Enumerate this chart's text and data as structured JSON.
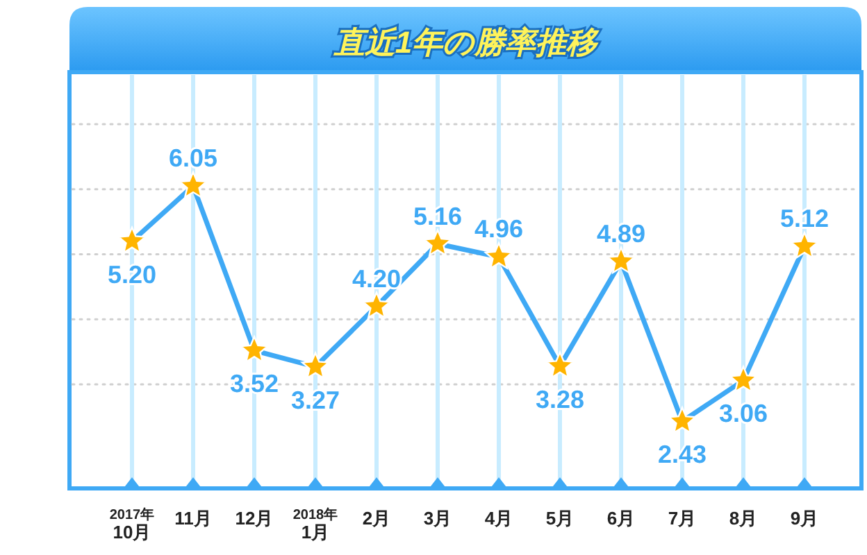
{
  "chart_data": {
    "type": "line",
    "title": "直近1年の勝率推移",
    "categories": [
      "2017年\n10月",
      "11月",
      "12月",
      "2018年\n1月",
      "2月",
      "3月",
      "4月",
      "5月",
      "6月",
      "7月",
      "8月",
      "9月"
    ],
    "series": [
      {
        "color": "#3fa9f5",
        "values": [
          5.2,
          6.05,
          3.52,
          3.27,
          4.2,
          5.16,
          4.96,
          3.28,
          4.89,
          2.43,
          3.06,
          5.12
        ],
        "value_labels": [
          "5.20",
          "6.05",
          "3.52",
          "3.27",
          "4.20",
          "5.16",
          "4.96",
          "3.28",
          "4.89",
          "2.43",
          "3.06",
          "5.12"
        ]
      }
    ],
    "ylim": [
      1.4,
      7.8
    ],
    "yticks": [
      {
        "value": 3,
        "label": null
      },
      {
        "value": 4,
        "label": null
      },
      {
        "value": 5,
        "label": null
      },
      {
        "value": 6,
        "label": null
      },
      {
        "value": 7,
        "label": null
      }
    ],
    "tick_labels": "x",
    "grid": true,
    "marker": "star",
    "line_style": "solid"
  }
}
